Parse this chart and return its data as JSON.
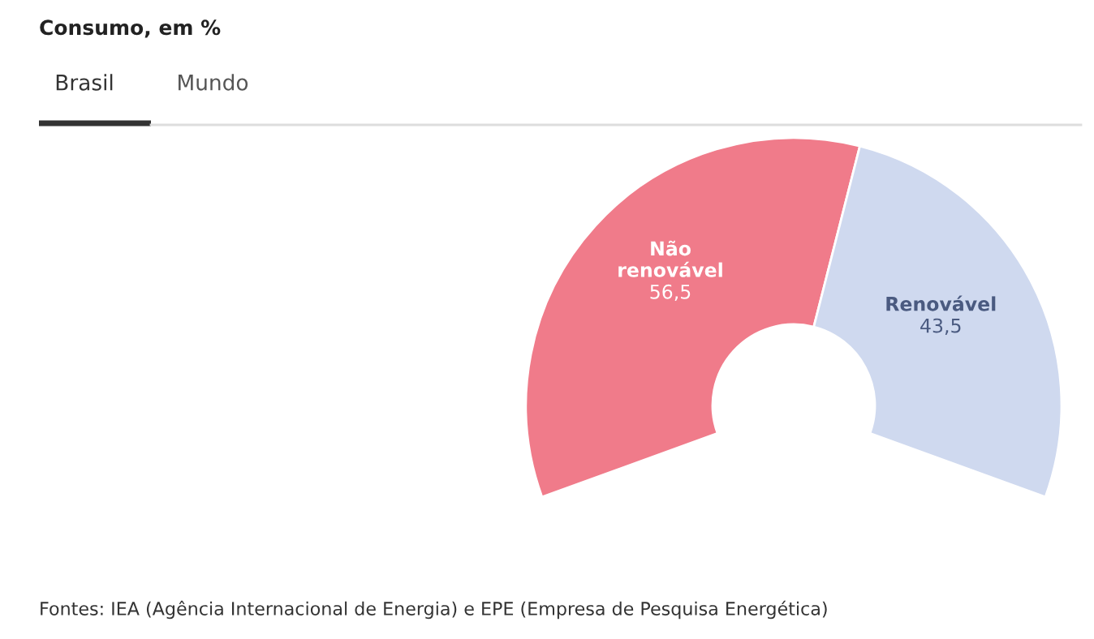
{
  "chart_data": {
    "type": "donut",
    "title": "Consumo, em %",
    "categories": [
      "Não renovável",
      "Renovável"
    ],
    "values": [
      56.5,
      43.5
    ],
    "colors": [
      "#f07b8a",
      "#cfd9ef"
    ],
    "value_labels": [
      "56,5",
      "43,5"
    ],
    "annotations": [
      "Brasil",
      "Mundo",
      "Fontes: IEA (Agência Internacional de Energia) e EPE (Empresa de Pesquisa Energética)"
    ]
  }
}
